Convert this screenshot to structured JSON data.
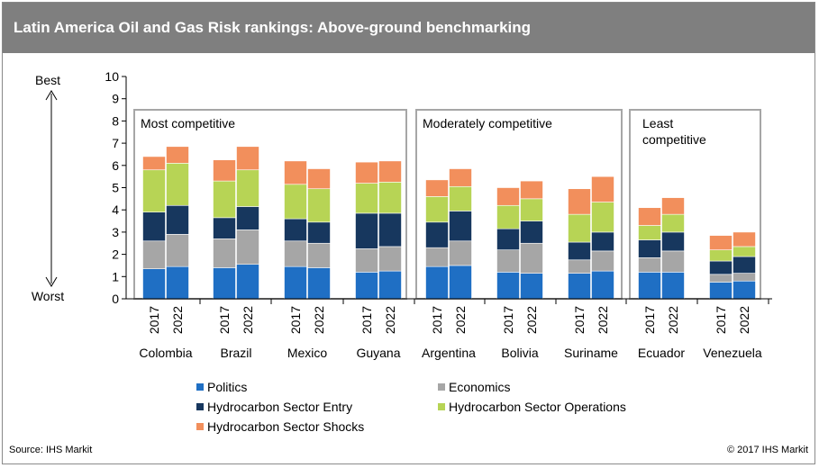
{
  "header": {
    "title": "Latin America Oil and Gas Risk rankings: Above-ground benchmarking"
  },
  "chart_data": {
    "type": "bar",
    "stacked": true,
    "title": "Latin America Oil and Gas Risk rankings: Above-ground benchmarking",
    "xlabel": "",
    "ylabel": "",
    "ylim": [
      0,
      10
    ],
    "yticks": [
      "0",
      "1",
      "2",
      "3",
      "4",
      "5",
      "6",
      "7",
      "8",
      "9",
      "10"
    ],
    "axis_annotation": {
      "top": "Best",
      "bottom": "Worst"
    },
    "grid": false,
    "legend_position": "bottom",
    "groups": [
      {
        "name": "Colombia",
        "years": [
          "2017",
          "2022"
        ]
      },
      {
        "name": "Brazil",
        "years": [
          "2017",
          "2022"
        ]
      },
      {
        "name": "Mexico",
        "years": [
          "2017",
          "2022"
        ]
      },
      {
        "name": "Guyana",
        "years": [
          "2017",
          "2022"
        ]
      },
      {
        "name": "Argentina",
        "years": [
          "2017",
          "2022"
        ]
      },
      {
        "name": "Bolivia",
        "years": [
          "2017",
          "2022"
        ]
      },
      {
        "name": "Suriname",
        "years": [
          "2017",
          "2022"
        ]
      },
      {
        "name": "Ecuador",
        "years": [
          "2017",
          "2022"
        ]
      },
      {
        "name": "Venezuela",
        "years": [
          "2017",
          "2022"
        ]
      }
    ],
    "series": [
      {
        "name": "Politics",
        "color": "#1f6fc4",
        "values": [
          1.35,
          1.45,
          1.4,
          1.55,
          1.45,
          1.4,
          1.2,
          1.25,
          1.45,
          1.5,
          1.2,
          1.15,
          1.15,
          1.25,
          1.2,
          1.2,
          0.75,
          0.8
        ]
      },
      {
        "name": "Economics",
        "color": "#a6a6a6",
        "values": [
          1.25,
          1.45,
          1.3,
          1.55,
          1.15,
          1.1,
          1.05,
          1.1,
          0.85,
          1.1,
          1.0,
          1.35,
          0.6,
          0.9,
          0.65,
          0.95,
          0.35,
          0.35
        ]
      },
      {
        "name": "Hydrocarbon Sector Entry",
        "color": "#17375e",
        "values": [
          1.3,
          1.3,
          0.95,
          1.05,
          1.0,
          0.95,
          1.6,
          1.5,
          1.15,
          1.35,
          0.95,
          1.0,
          0.8,
          0.85,
          0.8,
          0.85,
          0.6,
          0.75
        ]
      },
      {
        "name": "Hydrocarbon Sector Operations",
        "color": "#b7d455",
        "values": [
          1.9,
          1.9,
          1.65,
          1.65,
          1.55,
          1.5,
          1.35,
          1.4,
          1.15,
          1.1,
          1.05,
          1.0,
          1.25,
          1.35,
          0.65,
          0.8,
          0.5,
          0.45
        ]
      },
      {
        "name": "Hydrocarbon Sector Shocks",
        "color": "#f28f5c",
        "values": [
          0.6,
          0.75,
          0.95,
          1.05,
          1.05,
          0.9,
          0.95,
          0.95,
          0.75,
          0.8,
          0.8,
          0.8,
          1.15,
          1.15,
          0.8,
          0.75,
          0.65,
          0.65
        ]
      }
    ],
    "panels": [
      {
        "label": "Most competitive",
        "groups": [
          "Colombia",
          "Brazil",
          "Mexico",
          "Guyana"
        ]
      },
      {
        "label": "Moderately competitive",
        "groups": [
          "Argentina",
          "Bolivia",
          "Suriname"
        ]
      },
      {
        "label": "Least competitive",
        "groups": [
          "Ecuador",
          "Venezuela"
        ]
      }
    ]
  },
  "legend": {
    "items": [
      {
        "label": "Politics",
        "color": "#1f6fc4"
      },
      {
        "label": "Economics",
        "color": "#a6a6a6"
      },
      {
        "label": "Hydrocarbon Sector Entry",
        "color": "#17375e"
      },
      {
        "label": "Hydrocarbon Sector Operations",
        "color": "#b7d455"
      },
      {
        "label": "Hydrocarbon Sector Shocks",
        "color": "#f28f5c"
      }
    ]
  },
  "footer": {
    "source": "Source: IHS Markit",
    "copyright": "© 2017 IHS Markit"
  }
}
